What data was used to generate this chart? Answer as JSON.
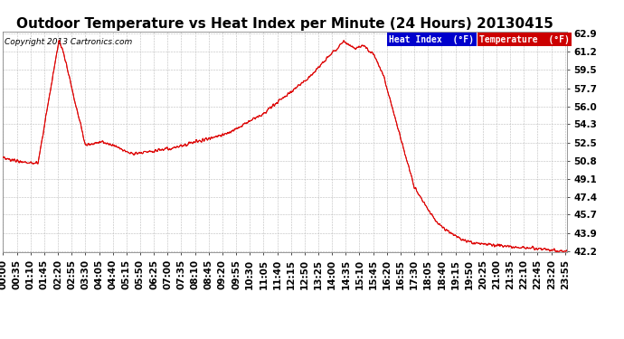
{
  "title": "Outdoor Temperature vs Heat Index per Minute (24 Hours) 20130415",
  "copyright": "Copyright 2013 Cartronics.com",
  "yticks": [
    42.2,
    43.9,
    45.7,
    47.4,
    49.1,
    50.8,
    52.5,
    54.3,
    56.0,
    57.7,
    59.5,
    61.2,
    62.9
  ],
  "ymin": 42.2,
  "ymax": 62.9,
  "line_color": "#dd0000",
  "bg_color": "#ffffff",
  "plot_bg_color": "#ffffff",
  "grid_color": "#bbbbbb",
  "legend_heat_bg": "#0000cc",
  "legend_temp_bg": "#cc0000",
  "legend_heat_text": "Heat Index  (°F)",
  "legend_temp_text": "Temperature  (°F)",
  "title_fontsize": 11,
  "copyright_fontsize": 6.5,
  "tick_fontsize": 7.5,
  "xtick_step": 35
}
